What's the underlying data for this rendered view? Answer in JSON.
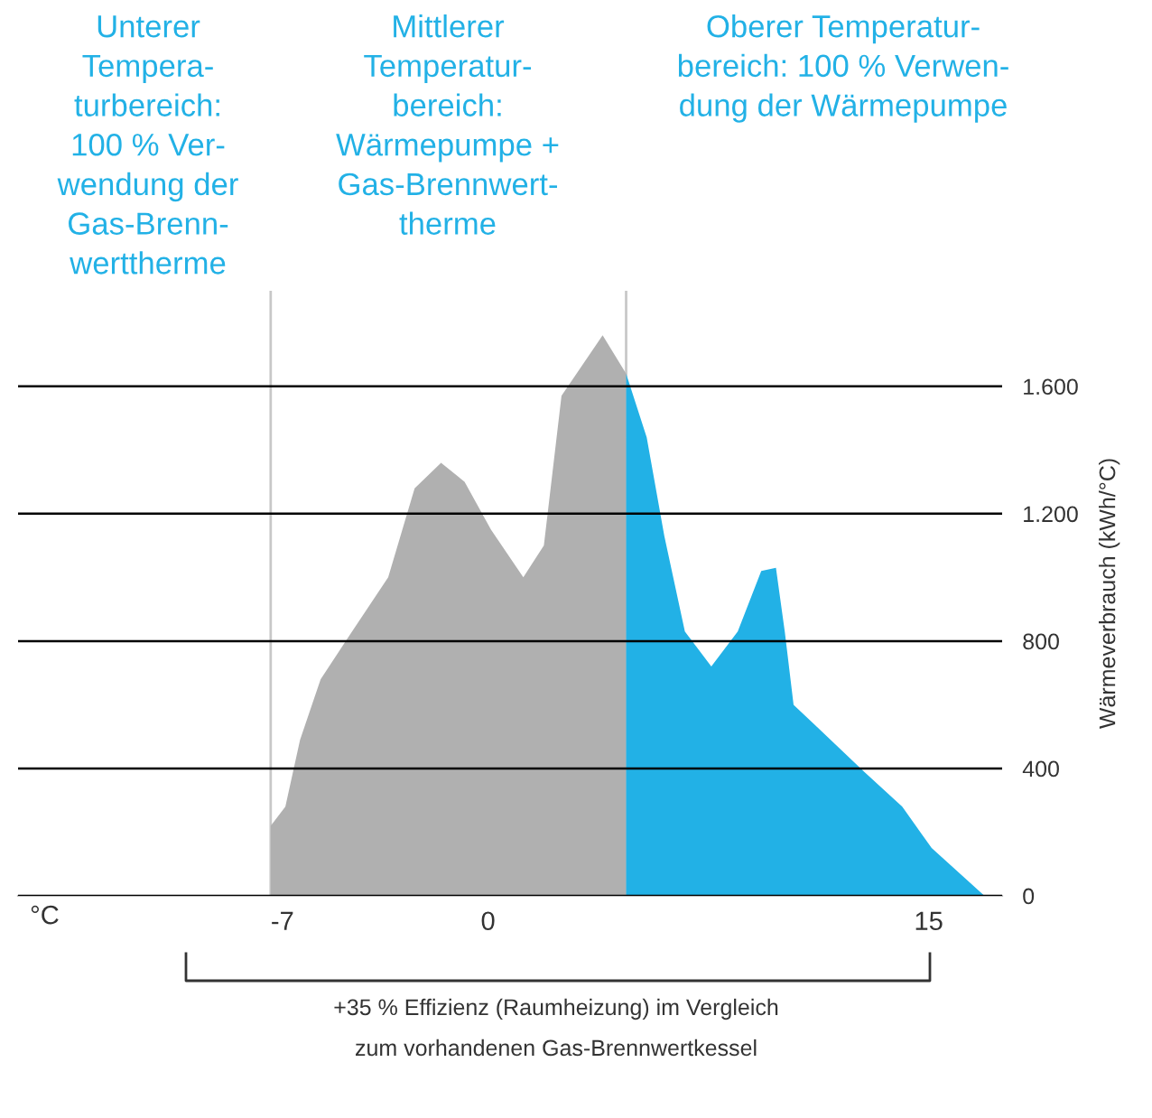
{
  "chart_data": {
    "type": "area",
    "xlabel": "°C",
    "ylabel": "Wärmeverbrauch (kWh/°C)",
    "series": [
      {
        "color": "#b0b0b0",
        "x": [
          -7.4,
          -6.9,
          -6.4,
          -5.7,
          -4.7,
          -3.4,
          -2.5,
          -1.6,
          -0.8,
          0.1,
          1.2,
          1.9,
          2.5,
          3.9,
          4.7
        ],
        "values": [
          220,
          280,
          490,
          680,
          820,
          1000,
          1280,
          1360,
          1300,
          1150,
          1000,
          1100,
          1570,
          1760,
          1640
        ]
      },
      {
        "color": "#22b1e6",
        "x": [
          4.7,
          5.4,
          6.0,
          6.7,
          7.6,
          8.5,
          9.3,
          9.8,
          10.1,
          10.4,
          11.2,
          12.8,
          14.1,
          15.1,
          16.9
        ],
        "values": [
          1640,
          1440,
          1130,
          830,
          720,
          830,
          1020,
          1030,
          830,
          600,
          530,
          390,
          280,
          150,
          0
        ]
      }
    ],
    "xlim": [
      -16,
      17.5
    ],
    "xticks": [
      -7,
      0,
      15
    ],
    "ylim": [
      0,
      1900
    ],
    "yticks": [
      {
        "value": 0,
        "label": "0"
      },
      {
        "value": 400,
        "label": "400"
      },
      {
        "value": 800,
        "label": "800"
      },
      {
        "value": 1200,
        "label": "1.200"
      },
      {
        "value": 1600,
        "label": "1.600"
      }
    ],
    "grid": "y",
    "ref_lines": [
      {
        "axis": "x",
        "value": -7.4,
        "color": "#c8c8c8"
      },
      {
        "axis": "x",
        "value": 4.7,
        "color": "#c8c8c8"
      }
    ],
    "annotations": [
      "Unterer\nTempera-\nturbereich:\n100 % Ver-\nwendung der\nGas-Brenn-\nwerttherme",
      "Mittlerer\nTemperatur-\nbereich:\nWärmepumpe +\nGas-Brennwert-\ntherme",
      "Oberer Temperatur-\nbereich: 100 % Verwen-\ndung der Wärmepumpe",
      "+35 % Effizienz (Raumheizung) im Vergleich\nzum vorhandenen Gas-Brennwertkessel"
    ]
  }
}
